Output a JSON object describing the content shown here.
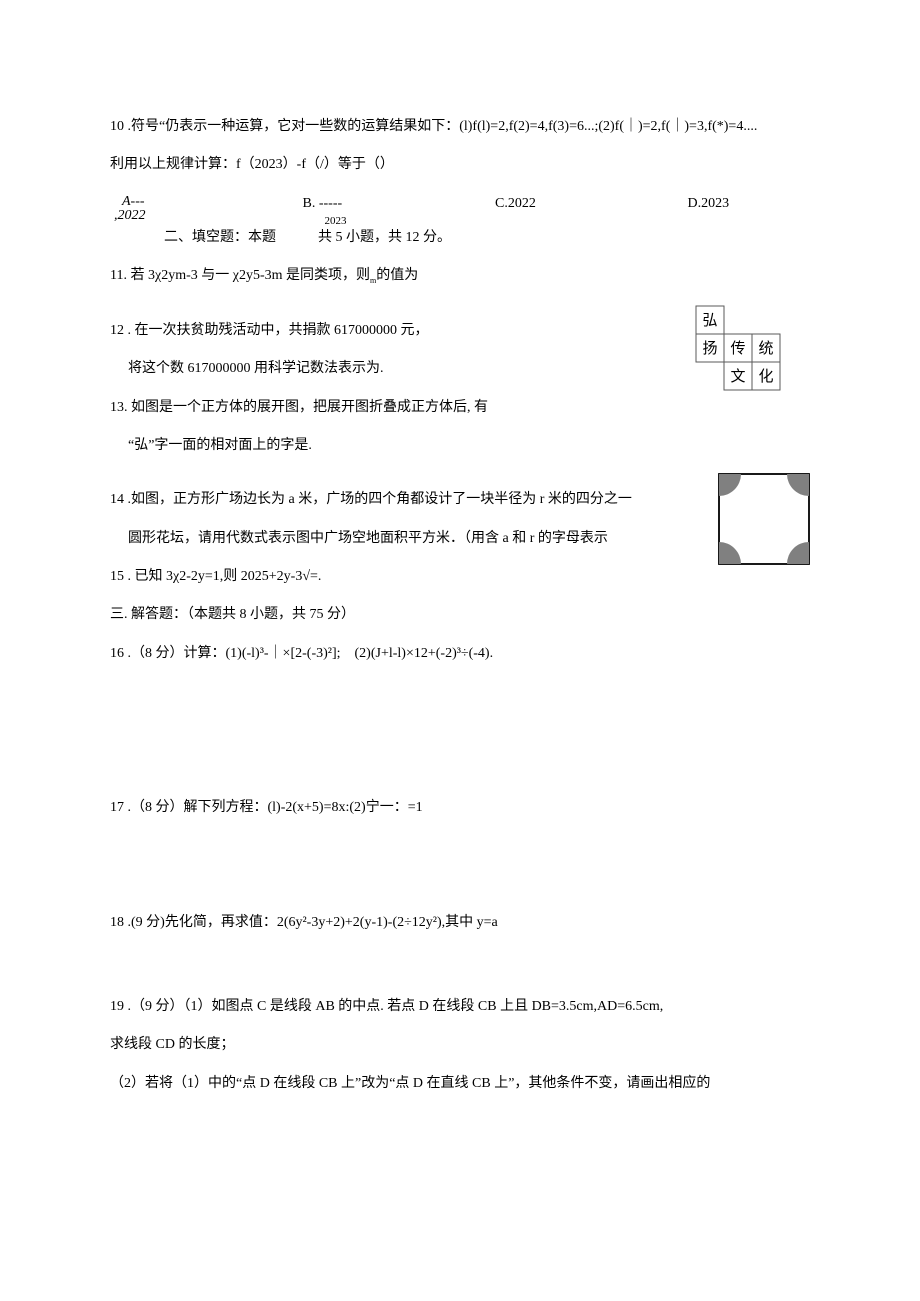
{
  "q10": {
    "line1": "10 .符号“仍表示一种运算，它对一些数的运算结果如下：(l)f(l)=2,f(2)=4,f(3)=6...;(2)f(｜)=2,f(｜)=3,f(*)=4....",
    "line2": "利用以上规律计算：f（2023）-f（/）等于（）",
    "optA_label": "A---",
    "optA_main": ",2022",
    "optB": "B. -----",
    "optB_denom": "2023",
    "optC": "C.2022",
    "optD": "D.2023"
  },
  "section2_title": "二、填空题：本题　　　共 5 小题，共 12 分。",
  "q11": {
    "text_a": "11. 若 3χ2ym-3 与一 χ2y5-3m 是同类项，则",
    "sub": "m",
    "text_b": "的值为"
  },
  "q12": {
    "line1": "12 . 在一次扶贫助残活动中，共捐款 617000000 元，",
    "line2": "将这个数 617000000 用科学记数法表示为."
  },
  "q13": {
    "line1": "13. 如图是一个正方体的展开图，把展开图折叠成正方体后, 有",
    "line2": "“弘”字一面的相对面上的字是."
  },
  "cube_chars": {
    "c1": "弘",
    "c2": "扬",
    "c3": "传",
    "c4": "统",
    "c5": "文",
    "c6": "化"
  },
  "q14": {
    "line1": "14 .如图，正方形广场边长为 a 米，广场的四个角都设计了一块半径为 r 米的四分之一",
    "line2": "圆形花坛，请用代数式表示图中广场空地面积平方米．（用含 a 和 r 的字母表示"
  },
  "q15": "15 . 已知 3χ2-2y=1,则 2025+2y-3√=.",
  "section3_title": "三. 解答题：（本题共 8 小题，共 75 分）",
  "q16": "16 .（8 分）计算：(1)(-l)³-｜×[2-(-3)²];　(2)(J+l-l)×12+(-2)³÷(-4).",
  "q17": "17 .（8 分）解下列方程：(l)-2(x+5)=8x:(2)宁一：=1",
  "q18": "18 .(9 分)先化简，再求值：2(6y²-3y+2)+2(y-1)-(2÷12y²),其中 y=a",
  "q19": {
    "line1": "19 .（9 分）（1）如图点 C 是线段 AB 的中点. 若点 D 在线段 CB 上且 DB=3.5cm,AD=6.5cm,",
    "line2": "求线段 CD 的长度；",
    "line3": "（2）若将（1）中的“点 D 在线段 CB 上”改为“点 D 在直线 CB 上”，其他条件不变，请画出相应的"
  },
  "style": {
    "cube": {
      "cell": 28,
      "stroke": "#5a5a5a",
      "stroke_w": 1,
      "font_size": 15
    },
    "corner": {
      "size": 90,
      "border": "#000",
      "border_w": 1.8,
      "fill": "#808080",
      "r": 22
    }
  }
}
